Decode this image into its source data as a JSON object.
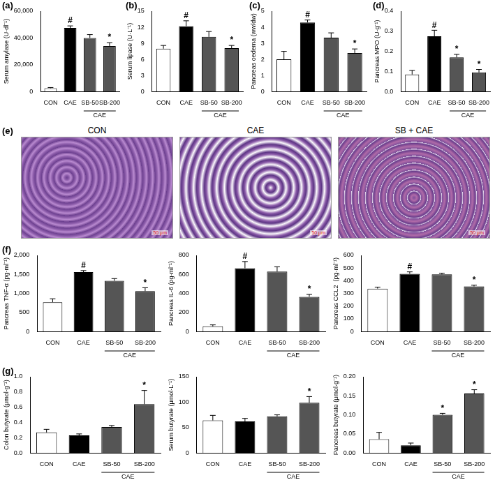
{
  "chart_data": [
    {
      "panel": "(a)",
      "type": "bar",
      "ylabel": "Serum amylase (U·dl⁻¹)",
      "categories": [
        "CON",
        "CAE",
        "SB-50",
        "SB-200"
      ],
      "values": [
        2500,
        47500,
        40000,
        34000
      ],
      "errors": [
        500,
        1500,
        2500,
        2500
      ],
      "colors": [
        "#ffffff",
        "#000000",
        "#555555",
        "#555555"
      ],
      "ylim": [
        0,
        60000
      ],
      "yticks": [
        0,
        {
          "value": 20000,
          "label": "20,000"
        },
        {
          "value": 40000,
          "label": "40,000"
        },
        {
          "value": 60000,
          "label": "60,000"
        }
      ],
      "annotations": [
        {
          "category": "CAE",
          "text": "#"
        },
        {
          "category": "SB-200",
          "text": "*"
        }
      ],
      "group": {
        "label": "CAE",
        "categories": [
          "SB-50",
          "SB-200"
        ]
      }
    },
    {
      "panel": "(b)",
      "type": "bar",
      "ylabel": "Serum lipase (U·L⁻¹)",
      "categories": [
        "CON",
        "CAE",
        "SB-50",
        "SB-200"
      ],
      "values": [
        8.0,
        12.2,
        10.2,
        8.1
      ],
      "errors": [
        0.6,
        1.0,
        1.0,
        0.5
      ],
      "colors": [
        "#ffffff",
        "#000000",
        "#555555",
        "#555555"
      ],
      "ylim": [
        0,
        15
      ],
      "yticks": [
        0,
        3,
        6,
        9,
        12,
        15
      ],
      "annotations": [
        {
          "category": "CAE",
          "text": "#"
        },
        {
          "category": "SB-200",
          "text": "*"
        }
      ],
      "group": {
        "label": "CAE",
        "categories": [
          "SB-50",
          "SB-200"
        ]
      }
    },
    {
      "panel": "(c)",
      "type": "bar",
      "ylabel": "Pancreas oedema (ww/dw)",
      "categories": [
        "CON",
        "CAE",
        "SB-50",
        "SB-200"
      ],
      "values": [
        2.0,
        4.3,
        3.35,
        2.4
      ],
      "errors": [
        0.5,
        0.15,
        0.3,
        0.25
      ],
      "colors": [
        "#ffffff",
        "#000000",
        "#555555",
        "#555555"
      ],
      "ylim": [
        0,
        5
      ],
      "yticks": [
        0,
        1,
        2,
        3,
        4,
        5
      ],
      "annotations": [
        {
          "category": "CAE",
          "text": "#"
        },
        {
          "category": "SB-200",
          "text": "*"
        }
      ],
      "group": {
        "label": "CAE",
        "categories": [
          "SB-50",
          "SB-200"
        ]
      }
    },
    {
      "panel": "(d)",
      "type": "bar",
      "ylabel": "Pancreas MPO (U·g⁻¹)",
      "categories": [
        "CON",
        "CAE",
        "SB-50",
        "SB-200"
      ],
      "values": [
        0.085,
        0.275,
        0.17,
        0.095
      ],
      "errors": [
        0.02,
        0.03,
        0.015,
        0.015
      ],
      "colors": [
        "#ffffff",
        "#000000",
        "#555555",
        "#555555"
      ],
      "ylim": [
        0,
        0.4
      ],
      "yticks": [
        {
          "value": 0,
          "label": "0.0"
        },
        0.1,
        0.2,
        0.3,
        0.4
      ],
      "annotations": [
        {
          "category": "CAE",
          "text": "#"
        },
        {
          "category": "SB-50",
          "text": "*"
        },
        {
          "category": "SB-200",
          "text": "*"
        }
      ],
      "group": {
        "label": "CAE",
        "categories": [
          "SB-50",
          "SB-200"
        ]
      }
    },
    {
      "panel": "(f)",
      "type": "bar",
      "ylabel": "Pancreas TNF-α (pg·ml⁻¹)",
      "categories": [
        "CON",
        "CAE",
        "SB-50",
        "SB-200"
      ],
      "values": [
        770,
        1560,
        1330,
        1060
      ],
      "errors": [
        90,
        40,
        60,
        90
      ],
      "colors": [
        "#ffffff",
        "#000000",
        "#555555",
        "#555555"
      ],
      "ylim": [
        0,
        2000
      ],
      "yticks": [
        0,
        500,
        {
          "value": 1000,
          "label": "1,000"
        },
        {
          "value": 1500,
          "label": "1,500"
        },
        {
          "value": 2000,
          "label": "2,000"
        }
      ],
      "annotations": [
        {
          "category": "CAE",
          "text": "#"
        },
        {
          "category": "SB-200",
          "text": "*"
        }
      ],
      "group": {
        "label": "CAE",
        "categories": [
          "SB-50",
          "SB-200"
        ]
      }
    },
    {
      "type": "bar",
      "ylabel": "Pancreas IL-6 (pg·ml⁻¹)",
      "categories": [
        "CON",
        "CAE",
        "SB-50",
        "SB-200"
      ],
      "values": [
        55,
        665,
        630,
        365
      ],
      "errors": [
        15,
        70,
        50,
        25
      ],
      "colors": [
        "#ffffff",
        "#000000",
        "#555555",
        "#555555"
      ],
      "ylim": [
        0,
        800
      ],
      "yticks": [
        0,
        200,
        400,
        600,
        800
      ],
      "annotations": [
        {
          "category": "CAE",
          "text": "#"
        },
        {
          "category": "SB-200",
          "text": "*"
        }
      ],
      "group": {
        "label": "CAE",
        "categories": [
          "SB-50",
          "SB-200"
        ]
      }
    },
    {
      "type": "bar",
      "ylabel": "Pancreas CCL2  (pg·ml⁻¹)",
      "categories": [
        "CON",
        "CAE",
        "SB-50",
        "SB-200"
      ],
      "values": [
        338,
        455,
        450,
        355
      ],
      "errors": [
        12,
        15,
        10,
        10
      ],
      "colors": [
        "#ffffff",
        "#000000",
        "#555555",
        "#555555"
      ],
      "ylim": [
        0,
        600
      ],
      "yticks": [
        0,
        100,
        200,
        300,
        400,
        500,
        600
      ],
      "annotations": [
        {
          "category": "CAE",
          "text": "#"
        },
        {
          "category": "SB-200",
          "text": "*"
        }
      ],
      "group": {
        "label": "CAE",
        "categories": [
          "SB-50",
          "SB-200"
        ]
      }
    },
    {
      "panel": "(g)",
      "type": "bar",
      "ylabel": "Colon butyrate (μmol·g⁻¹)",
      "categories": [
        "CON",
        "CAE",
        "SB-50",
        "SB-200"
      ],
      "values": [
        0.27,
        0.23,
        0.34,
        0.64
      ],
      "errors": [
        0.04,
        0.02,
        0.02,
        0.18
      ],
      "colors": [
        "#ffffff",
        "#000000",
        "#555555",
        "#555555"
      ],
      "ylim": [
        0,
        1
      ],
      "yticks": [
        {
          "value": 0,
          "label": "0.0"
        },
        0.2,
        0.4,
        0.6,
        0.8,
        {
          "value": 1,
          "label": "1.0"
        }
      ],
      "annotations": [
        {
          "category": "SB-200",
          "text": "*"
        }
      ],
      "group": {
        "label": "CAE",
        "categories": [
          "SB-50",
          "SB-200"
        ]
      }
    },
    {
      "type": "bar",
      "ylabel": "Serum butyrate (μmol·L⁻¹)",
      "categories": [
        "CON",
        "CAE",
        "SB-50",
        "SB-200"
      ],
      "values": [
        64,
        62,
        72,
        99
      ],
      "errors": [
        10,
        6,
        3,
        12
      ],
      "colors": [
        "#ffffff",
        "#000000",
        "#555555",
        "#555555"
      ],
      "ylim": [
        0,
        150
      ],
      "yticks": [
        0,
        50,
        100,
        150
      ],
      "annotations": [
        {
          "category": "SB-200",
          "text": "*"
        }
      ],
      "group": {
        "label": "CAE",
        "categories": [
          "SB-50",
          "SB-200"
        ]
      }
    },
    {
      "type": "bar",
      "ylabel": "Pancreas butyrate (μmol·g⁻¹)",
      "categories": [
        "CON",
        "CAE",
        "SB-50",
        "SB-200"
      ],
      "values": [
        0.036,
        0.02,
        0.1,
        0.156
      ],
      "errors": [
        0.018,
        0.006,
        0.004,
        0.01
      ],
      "colors": [
        "#ffffff",
        "#000000",
        "#555555",
        "#555555"
      ],
      "ylim": [
        0,
        0.2
      ],
      "yticks": [
        {
          "value": 0,
          "label": "0.00"
        },
        0.05,
        {
          "value": 0.1,
          "label": "0.10"
        },
        0.15,
        {
          "value": 0.2,
          "label": "0.20"
        }
      ],
      "annotations": [
        {
          "category": "SB-50",
          "text": "*"
        },
        {
          "category": "SB-200",
          "text": "*"
        }
      ],
      "group": {
        "label": "CAE",
        "categories": [
          "SB-50",
          "SB-200"
        ]
      }
    }
  ],
  "histology": {
    "panel": "(e)",
    "images": [
      {
        "label": "CON"
      },
      {
        "label": "CAE"
      },
      {
        "label": "SB + CAE"
      }
    ],
    "scale_bar": "50 μm"
  }
}
